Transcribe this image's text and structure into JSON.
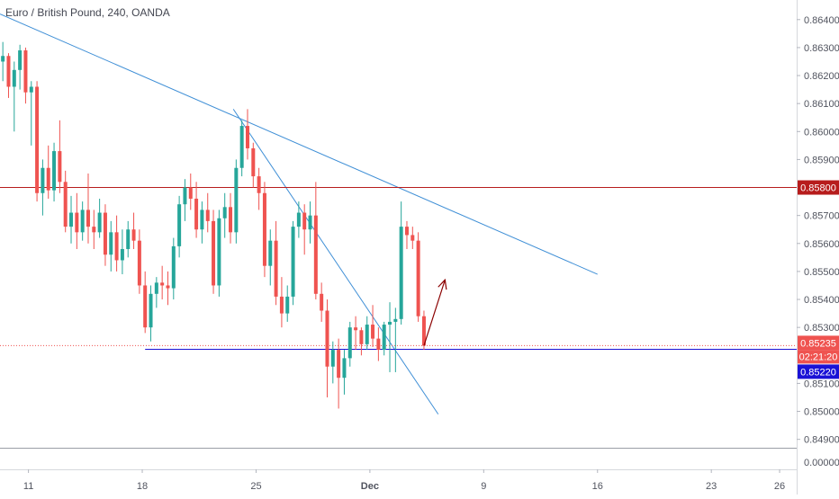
{
  "header": {
    "title": "Euro / British Pound, 240, OANDA"
  },
  "chart_data": {
    "type": "candlestick",
    "symbol": "Euro / British Pound",
    "interval": "240",
    "source": "OANDA",
    "ylim": [
      0.8487,
      0.8647
    ],
    "yticks": [
      0.864,
      0.863,
      0.862,
      0.861,
      0.86,
      0.859,
      0.857,
      0.856,
      0.855,
      0.854,
      0.853,
      0.851,
      0.85,
      0.849
    ],
    "ytick_labels": [
      "0.86400",
      "0.86300",
      "0.86200",
      "0.86100",
      "0.86000",
      "0.85900",
      "0.85700",
      "0.85600",
      "0.85500",
      "0.85400",
      "0.85300",
      "0.85100",
      "0.85000",
      "0.84900"
    ],
    "bottom_axis_label": "0.00000",
    "xlim": [
      0,
      140
    ],
    "xticks": [
      {
        "label": "11",
        "x": 5
      },
      {
        "label": "18",
        "x": 25
      },
      {
        "label": "25",
        "x": 45
      },
      {
        "label": "Dec",
        "x": 65
      },
      {
        "label": "9",
        "x": 85
      },
      {
        "label": "16",
        "x": 105
      },
      {
        "label": "23",
        "x": 125
      },
      {
        "label": "26",
        "x": 137
      }
    ],
    "price_labels": [
      {
        "value": 0.858,
        "text": "0.85800",
        "color": "#b71c1c"
      },
      {
        "value": 0.85235,
        "text": "0.85235",
        "color": "#ef5350"
      },
      {
        "value": 0.8522,
        "text": "0.85220",
        "color": "#1a12d6"
      }
    ],
    "countdown": "02:21:20",
    "up_color": "#26a69a",
    "down_color": "#ef5350",
    "lines": [
      {
        "name": "long-downtrend",
        "x1": 0,
        "y1": 0.8642,
        "x2": 105,
        "y2": 0.8549,
        "color": "#3f8fd6"
      },
      {
        "name": "steep-downtrend",
        "x1": 41,
        "y1": 0.8608,
        "x2": 77,
        "y2": 0.8499,
        "color": "#3f8fd6"
      },
      {
        "name": "resistance",
        "x1": 0,
        "y1": 0.858,
        "x2": 140,
        "y2": 0.858,
        "color": "#b71c1c"
      },
      {
        "name": "support",
        "x1": 25.5,
        "y1": 0.85222,
        "x2": 140,
        "y2": 0.85222,
        "color": "#1a12d6"
      },
      {
        "name": "current-price",
        "x1": 0,
        "y1": 0.85235,
        "x2": 140,
        "y2": 0.85235,
        "color": "#ef5350",
        "dotted": true
      }
    ],
    "arrow": {
      "x1": 74.5,
      "y1": 0.85235,
      "x2": 78.2,
      "y2": 0.8547,
      "color": "#8b0000"
    },
    "ohlc": [
      [
        0.8625,
        0.8632,
        0.8618,
        0.8627
      ],
      [
        0.8627,
        0.8628,
        0.8612,
        0.8616
      ],
      [
        0.8616,
        0.8625,
        0.86,
        0.8622
      ],
      [
        0.8622,
        0.8631,
        0.8615,
        0.8629
      ],
      [
        0.8629,
        0.863,
        0.861,
        0.8614
      ],
      [
        0.8614,
        0.8618,
        0.8595,
        0.8616
      ],
      [
        0.8616,
        0.8618,
        0.8575,
        0.8578
      ],
      [
        0.8578,
        0.859,
        0.857,
        0.8587
      ],
      [
        0.8587,
        0.8595,
        0.8576,
        0.8579
      ],
      [
        0.8579,
        0.8596,
        0.8575,
        0.8593
      ],
      [
        0.8593,
        0.8604,
        0.8578,
        0.8582
      ],
      [
        0.8582,
        0.8586,
        0.8564,
        0.8566
      ],
      [
        0.8566,
        0.8577,
        0.856,
        0.8571
      ],
      [
        0.8571,
        0.8578,
        0.8558,
        0.8564
      ],
      [
        0.8564,
        0.8575,
        0.8561,
        0.8572
      ],
      [
        0.8572,
        0.8585,
        0.856,
        0.8566
      ],
      [
        0.8566,
        0.8572,
        0.8558,
        0.8564
      ],
      [
        0.8564,
        0.8576,
        0.8562,
        0.8571
      ],
      [
        0.8571,
        0.8574,
        0.8552,
        0.8556
      ],
      [
        0.8556,
        0.8568,
        0.855,
        0.8564
      ],
      [
        0.8564,
        0.857,
        0.855,
        0.8554
      ],
      [
        0.8554,
        0.8565,
        0.8549,
        0.8558
      ],
      [
        0.8558,
        0.8568,
        0.8555,
        0.8565
      ],
      [
        0.8565,
        0.8571,
        0.8558,
        0.8561
      ],
      [
        0.8561,
        0.8565,
        0.8542,
        0.8545
      ],
      [
        0.8545,
        0.855,
        0.8528,
        0.853
      ],
      [
        0.853,
        0.8545,
        0.8525,
        0.8542
      ],
      [
        0.8542,
        0.8548,
        0.8537,
        0.8546
      ],
      [
        0.8546,
        0.8552,
        0.854,
        0.8545
      ],
      [
        0.8545,
        0.855,
        0.8538,
        0.8544
      ],
      [
        0.8544,
        0.8562,
        0.854,
        0.8559
      ],
      [
        0.8559,
        0.8577,
        0.8555,
        0.8574
      ],
      [
        0.8574,
        0.8583,
        0.8568,
        0.858
      ],
      [
        0.858,
        0.8585,
        0.8572,
        0.8576
      ],
      [
        0.8576,
        0.8582,
        0.8562,
        0.8565
      ],
      [
        0.8565,
        0.8575,
        0.856,
        0.8572
      ],
      [
        0.8572,
        0.8578,
        0.8564,
        0.8568
      ],
      [
        0.8568,
        0.8572,
        0.8542,
        0.8545
      ],
      [
        0.8545,
        0.8572,
        0.8541,
        0.8569
      ],
      [
        0.8569,
        0.8578,
        0.8562,
        0.8573
      ],
      [
        0.8573,
        0.8578,
        0.856,
        0.8564
      ],
      [
        0.8564,
        0.859,
        0.856,
        0.8587
      ],
      [
        0.8587,
        0.8604,
        0.8584,
        0.8602
      ],
      [
        0.8602,
        0.8608,
        0.859,
        0.8594
      ],
      [
        0.8594,
        0.8596,
        0.858,
        0.8584
      ],
      [
        0.8584,
        0.8587,
        0.8572,
        0.8578
      ],
      [
        0.8578,
        0.8582,
        0.8548,
        0.8552
      ],
      [
        0.8552,
        0.8565,
        0.8545,
        0.8561
      ],
      [
        0.8561,
        0.8568,
        0.8538,
        0.8541
      ],
      [
        0.8541,
        0.8548,
        0.853,
        0.8535
      ],
      [
        0.8535,
        0.8545,
        0.8532,
        0.8541
      ],
      [
        0.8541,
        0.8568,
        0.8538,
        0.8566
      ],
      [
        0.8566,
        0.8575,
        0.8562,
        0.8571
      ],
      [
        0.8571,
        0.8574,
        0.8556,
        0.8565
      ],
      [
        0.8565,
        0.8575,
        0.856,
        0.857
      ],
      [
        0.857,
        0.8582,
        0.854,
        0.8542
      ],
      [
        0.8542,
        0.8546,
        0.8532,
        0.8536
      ],
      [
        0.8536,
        0.854,
        0.8505,
        0.8516
      ],
      [
        0.8516,
        0.8525,
        0.851,
        0.8522
      ],
      [
        0.8522,
        0.8526,
        0.8501,
        0.8512
      ],
      [
        0.8512,
        0.8522,
        0.8506,
        0.8519
      ],
      [
        0.8519,
        0.8532,
        0.8516,
        0.853
      ],
      [
        0.853,
        0.8534,
        0.8522,
        0.8529
      ],
      [
        0.8529,
        0.853,
        0.852,
        0.8524
      ],
      [
        0.8524,
        0.8534,
        0.8522,
        0.8531
      ],
      [
        0.8531,
        0.8538,
        0.8523,
        0.8526
      ],
      [
        0.8526,
        0.853,
        0.8518,
        0.8522
      ],
      [
        0.8522,
        0.8532,
        0.852,
        0.8531
      ],
      [
        0.8531,
        0.8539,
        0.8514,
        0.8532
      ],
      [
        0.8532,
        0.8537,
        0.8514,
        0.8533
      ],
      [
        0.8533,
        0.8575,
        0.8531,
        0.8566
      ],
      [
        0.8566,
        0.8568,
        0.8558,
        0.8563
      ],
      [
        0.8563,
        0.8566,
        0.8558,
        0.8561
      ],
      [
        0.8561,
        0.8564,
        0.8532,
        0.8534
      ],
      [
        0.8534,
        0.8536,
        0.8522,
        0.85235
      ]
    ]
  }
}
